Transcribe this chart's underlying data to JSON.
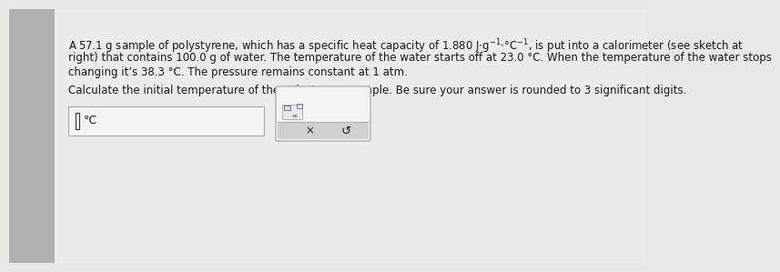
{
  "bg_color": "#e8e8e4",
  "sidebar_color": "#b0b0b0",
  "panel_color": "#eeecea",
  "text_line1": "A 57.1 g sample of polystyrene, which has a specific heat capacity of 1.880 J·g⁻¹·°C⁻¹, is put into a calorimeter (see sketch at",
  "text_line2": "right) that contains 100.0 g of water. The temperature of the water starts off at 23.0 °C. When the temperature of the water stops",
  "text_line3": "changing it’s 38.3 °C. The pressure remains constant at 1 atm.",
  "text_line4": "Calculate the initial temperature of the polystyrene sample. Be sure your answer is rounded to 3 significant digits.",
  "font_size_main": 8.5,
  "text_color": "#1a1a1a",
  "input_bg": "#f5f4f2",
  "box2_bg": "#f5f4f2",
  "button_bg": "#c8c8c4",
  "border_color": "#aaaaaa"
}
